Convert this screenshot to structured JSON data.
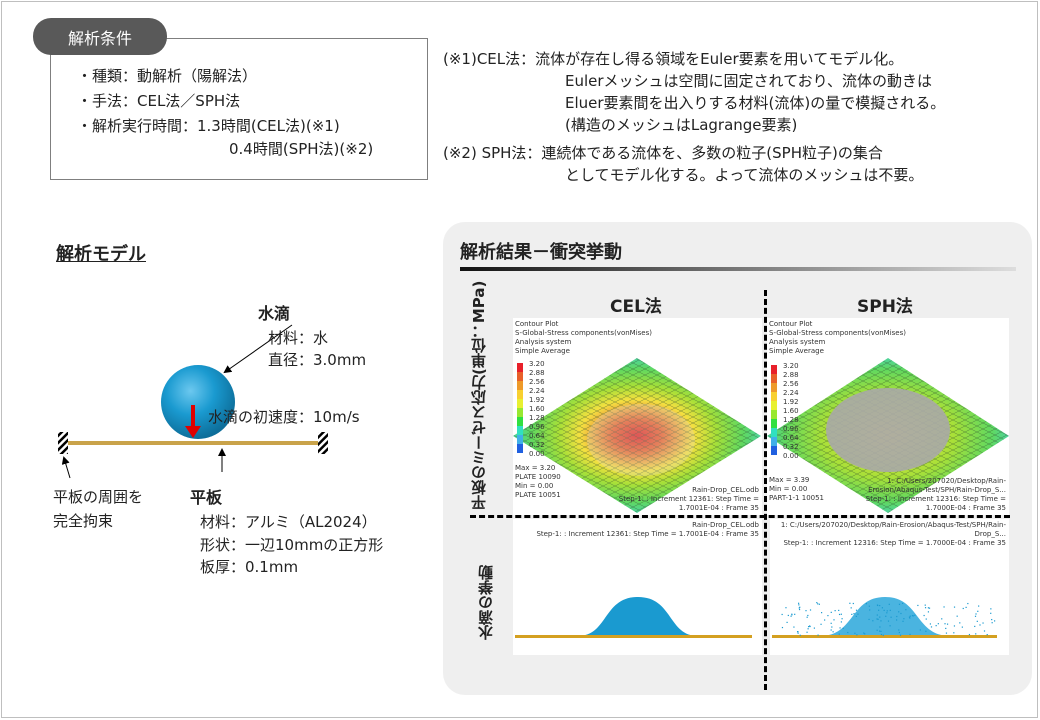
{
  "conditions": {
    "tag": "解析条件",
    "lines": [
      "・種類：動解析（陽解法）",
      "・手法：CEL法／SPH法",
      "・解析実行時間：1.3時間(CEL法)(※1)",
      "0.4時間(SPH法)(※2)"
    ]
  },
  "notes": {
    "cel": [
      "(※1)CEL法：流体が存在し得る領域をEuler要素を用いてモデル化。",
      "Eulerメッシュは空間に固定されており、流体の動きは",
      "Eluer要素間を出入りする材料(流体)の量で模擬される。",
      "(構造のメッシュはLagrange要素)"
    ],
    "sph": [
      "(※2) SPH法：連続体である流体を、多数の粒子(SPH粒子)の集合",
      "としてモデル化する。よって流体のメッシュは不要。"
    ]
  },
  "model": {
    "title": "解析モデル",
    "drop_title": "水滴",
    "drop_lines": [
      "材料：水",
      "直径：3.0mm"
    ],
    "velocity": "水滴の初速度：10m/s",
    "constraint": [
      "平板の周囲を",
      "完全拘束"
    ],
    "plate_title": "平板",
    "plate_lines": [
      "材料：アルミ（AL2024）",
      "形状：一辺10mmの正方形",
      "板厚：0.1mm"
    ]
  },
  "results": {
    "title": "解析結果－衝突挙動",
    "col_cel": "CEL法",
    "col_sph": "SPH法",
    "row_stress": [
      "平板のミーゼス応力",
      "(単位：MPa)"
    ],
    "row_drop": "水滴の挙動",
    "plot_header": [
      "Contour Plot",
      "S-Global-Stress components(vonMises)",
      "Analysis system",
      "Simple Average"
    ],
    "legend": [
      "3.20",
      "2.88",
      "2.56",
      "2.24",
      "1.92",
      "1.60",
      "1.28",
      "0.96",
      "0.64",
      "0.32",
      "0.00"
    ],
    "legend_colors": [
      "#e8202a",
      "#e8602a",
      "#ee9a2a",
      "#f8d030",
      "#e8f030",
      "#98e830",
      "#30e040",
      "#30e0c0",
      "#40b0e8",
      "#2060e0",
      "#1010b0"
    ],
    "cel": {
      "file": "Rain-Drop_CEL.odb",
      "step": "Step-1: : Increment     12361: Step Time =    1.7001E-04 : Frame 35",
      "max": "Max = 3.20",
      "max_el": "PLATE 10090",
      "min": "Min = 0.00",
      "min_el": "PLATE 10051"
    },
    "sph": {
      "file": "1: C:/Users/207020/Desktop/Rain-Erosion/Abaqus-Test/SPH/Rain-Drop_S...",
      "step": "Step-1: : Increment     12316: Step Time =    1.7000E-04 : Frame 35",
      "max": "Max = 3.39",
      "min": "Min = 0.00",
      "min_el": "PART-1-1 10051"
    }
  },
  "colors": {
    "water": "#1a9ad0",
    "plate": "#d4a020",
    "arrow": "#e00000",
    "pill": "#595959"
  }
}
